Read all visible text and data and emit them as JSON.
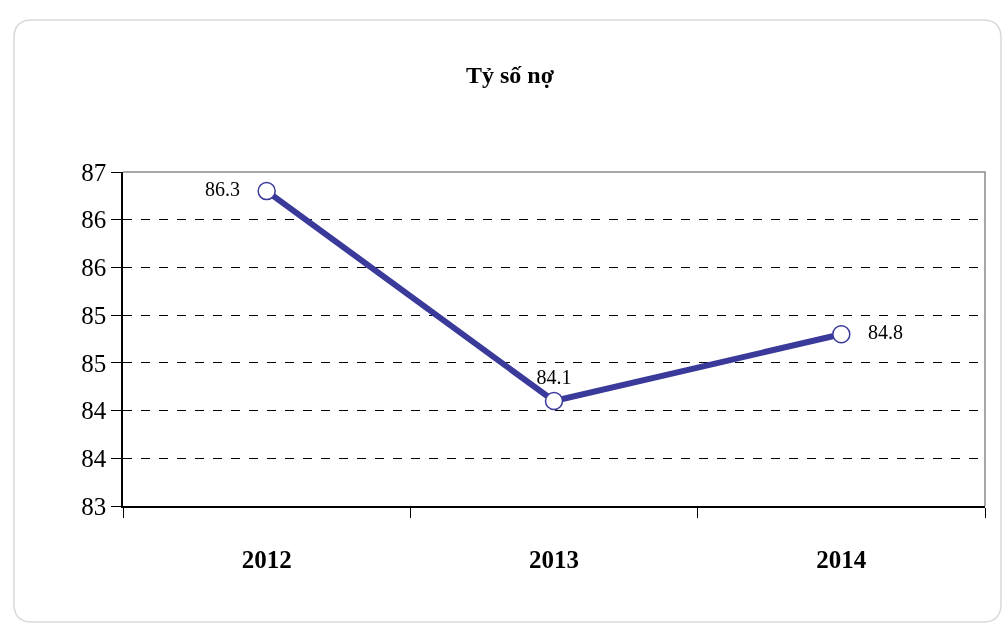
{
  "chart_data": {
    "type": "line",
    "title": "Tỷ số nợ",
    "categories": [
      "2012",
      "2013",
      "2014"
    ],
    "series": [
      {
        "color": "#3a3a9a",
        "values": [
          86.3,
          84.1,
          84.8
        ]
      }
    ],
    "ylim": [
      83,
      86.5
    ],
    "yticks": [
      83,
      {
        "value": 83.5,
        "label": "84"
      },
      84,
      {
        "value": 84.5,
        "label": "85"
      },
      85,
      {
        "value": 85.5,
        "label": "86"
      },
      86,
      {
        "value": 86.5,
        "label": "87"
      }
    ],
    "grid": "y",
    "marker": "circle",
    "line_style": "solid",
    "data_labels": true
  }
}
